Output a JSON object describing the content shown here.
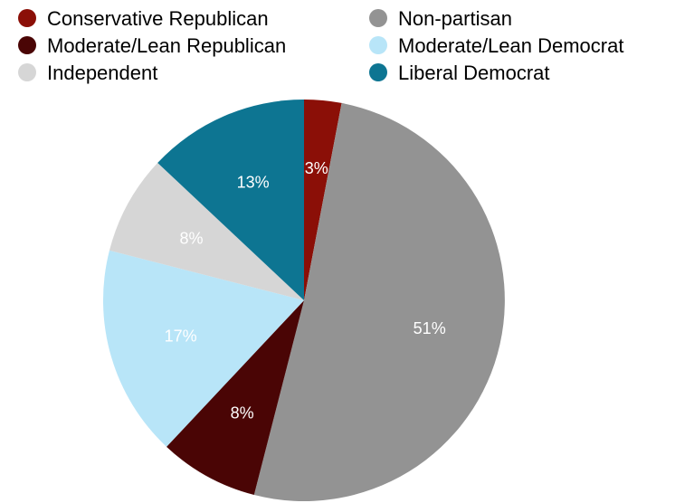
{
  "chart_data": {
    "type": "pie",
    "title": "",
    "legend_position": "top",
    "start_angle_deg": 0,
    "direction": "clockwise",
    "slices": [
      {
        "name": "Conservative Republican",
        "value": 3,
        "label": "3%",
        "color": "#8b0f07",
        "label_color": "#ffffff"
      },
      {
        "name": "Non-partisan",
        "value": 51,
        "label": "51%",
        "color": "#939393",
        "label_color": "#ffffff"
      },
      {
        "name": "Moderate/Lean Republican",
        "value": 8,
        "label": "8%",
        "color": "#4a0505",
        "label_color": "#ffffff"
      },
      {
        "name": "Moderate/Lean Democrat",
        "value": 17,
        "label": "17%",
        "color": "#b8e5f8",
        "label_color": "#ffffff"
      },
      {
        "name": "Independent",
        "value": 8,
        "label": "8%",
        "color": "#d6d6d6",
        "label_color": "#ffffff"
      },
      {
        "name": "Liberal Democrat",
        "value": 13,
        "label": "13%",
        "color": "#0d7592",
        "label_color": "#ffffff"
      }
    ],
    "legend": [
      {
        "name": "Conservative Republican",
        "color": "#8b0f07"
      },
      {
        "name": "Non-partisan",
        "color": "#939393"
      },
      {
        "name": "Moderate/Lean Republican",
        "color": "#4a0505"
      },
      {
        "name": "Moderate/Lean Democrat",
        "color": "#b8e5f8"
      },
      {
        "name": "Independent",
        "color": "#d6d6d6"
      },
      {
        "name": "Liberal Democrat",
        "color": "#0d7592"
      }
    ]
  }
}
